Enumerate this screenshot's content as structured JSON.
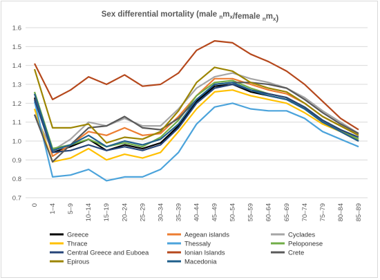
{
  "chart_data": {
    "type": "line",
    "title_main": "Sex differential mortality (male ",
    "title_parts": [
      {
        "pre": "n",
        "main": "m"
      },
      {
        "sub": "x"
      },
      {
        "text": "/female "
      },
      {
        "pre": "n",
        "main": "m"
      },
      {
        "sub": "x"
      },
      {
        "text": ")"
      }
    ],
    "categories": [
      "0",
      "1–4",
      "5–9",
      "10–14",
      "15–19",
      "20–24",
      "25–29",
      "30–34",
      "35–39",
      "40–44",
      "45–49",
      "50–54",
      "55–59",
      "60–64",
      "65–69",
      "70–74",
      "75–79",
      "80–84",
      "85–89"
    ],
    "ylim": [
      0.7,
      1.6
    ],
    "yticks": [
      "0.7",
      "0.8",
      "0.9",
      "1.0",
      "1.1",
      "1.2",
      "1.3",
      "1.4",
      "1.5",
      "1.6"
    ],
    "grid": true,
    "legend_position": "bottom",
    "series": [
      {
        "name": "Greece",
        "color": "#000000",
        "values": [
          1.23,
          0.94,
          0.97,
          1.01,
          0.95,
          0.98,
          0.96,
          0.99,
          1.08,
          1.21,
          1.29,
          1.3,
          1.26,
          1.24,
          1.22,
          1.17,
          1.1,
          1.05,
          1.0
        ]
      },
      {
        "name": "Aegean islands",
        "color": "#ED7D31",
        "values": [
          1.25,
          0.92,
          0.98,
          1.05,
          1.03,
          1.07,
          1.03,
          1.04,
          1.13,
          1.24,
          1.33,
          1.33,
          1.3,
          1.27,
          1.25,
          1.2,
          1.13,
          1.08,
          1.03
        ]
      },
      {
        "name": "Cyclades",
        "color": "#A5A5A5",
        "values": [
          1.14,
          0.95,
          1.01,
          1.1,
          1.08,
          1.12,
          1.08,
          1.08,
          1.17,
          1.28,
          1.34,
          1.36,
          1.33,
          1.31,
          1.28,
          1.23,
          1.16,
          1.1,
          1.04
        ]
      },
      {
        "name": "Thrace",
        "color": "#FFC000",
        "values": [
          1.17,
          0.89,
          0.91,
          0.96,
          0.9,
          0.93,
          0.91,
          0.94,
          1.05,
          1.17,
          1.26,
          1.27,
          1.24,
          1.22,
          1.2,
          1.15,
          1.09,
          1.05,
          1.01
        ]
      },
      {
        "name": "Thessaly",
        "color": "#4BA3DB",
        "values": [
          1.21,
          0.81,
          0.82,
          0.85,
          0.79,
          0.81,
          0.81,
          0.85,
          0.94,
          1.09,
          1.18,
          1.2,
          1.17,
          1.16,
          1.16,
          1.12,
          1.05,
          1.01,
          0.97
        ]
      },
      {
        "name": "Peloponese",
        "color": "#70AD47",
        "values": [
          1.26,
          0.96,
          0.98,
          1.01,
          0.97,
          0.99,
          0.97,
          1.02,
          1.11,
          1.24,
          1.31,
          1.32,
          1.28,
          1.25,
          1.23,
          1.18,
          1.11,
          1.06,
          1.01
        ]
      },
      {
        "name": "Central Greece and Euboea",
        "color": "#264478",
        "values": [
          1.22,
          0.94,
          0.95,
          0.98,
          0.95,
          0.97,
          0.95,
          0.98,
          1.07,
          1.2,
          1.28,
          1.3,
          1.27,
          1.25,
          1.23,
          1.18,
          1.11,
          1.06,
          1.02
        ]
      },
      {
        "name": "Ionian Islands",
        "color": "#B5481C",
        "values": [
          1.41,
          1.22,
          1.27,
          1.34,
          1.3,
          1.35,
          1.29,
          1.3,
          1.36,
          1.48,
          1.53,
          1.52,
          1.46,
          1.42,
          1.37,
          1.3,
          1.21,
          1.12,
          1.06
        ]
      },
      {
        "name": "Crete",
        "color": "#595959",
        "values": [
          1.14,
          0.89,
          0.98,
          1.07,
          1.08,
          1.13,
          1.07,
          1.06,
          1.12,
          1.22,
          1.3,
          1.31,
          1.31,
          1.3,
          1.28,
          1.22,
          1.15,
          1.09,
          1.04
        ]
      },
      {
        "name": "Epirous",
        "color": "#9C8500",
        "values": [
          1.38,
          1.07,
          1.07,
          1.09,
          0.99,
          1.02,
          1.01,
          1.05,
          1.16,
          1.31,
          1.39,
          1.37,
          1.31,
          1.28,
          1.26,
          1.2,
          1.13,
          1.08,
          1.03
        ]
      },
      {
        "name": "Macedonia",
        "color": "#1F5F8B",
        "values": [
          1.25,
          0.95,
          0.98,
          1.03,
          0.97,
          1.0,
          0.98,
          1.01,
          1.09,
          1.22,
          1.3,
          1.31,
          1.27,
          1.24,
          1.22,
          1.17,
          1.1,
          1.05,
          1.0
        ]
      }
    ]
  }
}
